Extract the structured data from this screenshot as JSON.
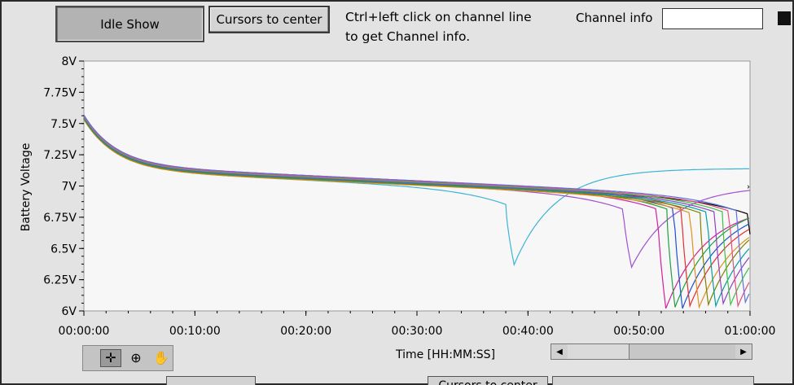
{
  "toolbar": {
    "idle_show_label": "Idle Show",
    "cursors_to_center_label": "Cursors to center",
    "hint_text": "Ctrl+left click on channel line\nto get Channel info.",
    "channel_info_label": "Channel info",
    "channel_info_value": ""
  },
  "chart_data": {
    "type": "line",
    "title": "",
    "xlabel": "Time [HH:MM:SS]",
    "ylabel": "Battery Voltage",
    "xlim": [
      0,
      3600
    ],
    "ylim": [
      6.0,
      8.0
    ],
    "x_tick_labels": [
      "00:00:00",
      "00:10:00",
      "00:20:00",
      "00:30:00",
      "00:40:00",
      "00:50:00",
      "01:00:00"
    ],
    "x_tick_values": [
      0,
      600,
      1200,
      1800,
      2400,
      3000,
      3600
    ],
    "y_tick_labels": [
      "8V",
      "7.75V",
      "7.5V",
      "7.25V",
      "7V",
      "6.75V",
      "6.5V",
      "6.25V",
      "6V"
    ],
    "y_tick_values": [
      8,
      7.75,
      7.5,
      7.25,
      7,
      6.75,
      6.5,
      6.25,
      6
    ],
    "grid": false,
    "legend": "none",
    "series": [
      {
        "color": "#3cb4d8",
        "cutoff_s": 2280,
        "min_v": 6.37,
        "recover_v": 7.14
      },
      {
        "color": "#a050d0",
        "cutoff_s": 2915,
        "min_v": 6.35,
        "recover_v": 7.0
      },
      {
        "color": "#000000",
        "cutoff_s": 3595,
        "min_v": 6.03
      },
      {
        "color": "#d020a0",
        "cutoff_s": 3100,
        "min_v": 6.02,
        "recover_v": 6.85
      },
      {
        "color": "#20a040",
        "cutoff_s": 3150,
        "min_v": 6.03,
        "recover_v": 6.88
      },
      {
        "color": "#2050d0",
        "cutoff_s": 3190,
        "min_v": 6.02,
        "recover_v": 6.86
      },
      {
        "color": "#e03030",
        "cutoff_s": 3230,
        "min_v": 6.04,
        "recover_v": 6.84
      },
      {
        "color": "#e09020",
        "cutoff_s": 3280,
        "min_v": 6.03,
        "recover_v": 6.82
      },
      {
        "color": "#808000",
        "cutoff_s": 3330,
        "min_v": 6.05,
        "recover_v": 6.87
      },
      {
        "color": "#00a0a0",
        "cutoff_s": 3370,
        "min_v": 6.04,
        "recover_v": 6.86
      },
      {
        "color": "#9040c0",
        "cutoff_s": 3410,
        "min_v": 6.06,
        "recover_v": 6.84
      },
      {
        "color": "#40c040",
        "cutoff_s": 3450,
        "min_v": 6.05,
        "recover_v": 6.86
      },
      {
        "color": "#e05080",
        "cutoff_s": 3490,
        "min_v": 6.04,
        "recover_v": 6.83
      },
      {
        "color": "#6070e0",
        "cutoff_s": 3530,
        "min_v": 6.07,
        "recover_v": 6.84
      }
    ]
  },
  "bottom_bar": {
    "cursors_to_center_label": "Cursors to center"
  }
}
